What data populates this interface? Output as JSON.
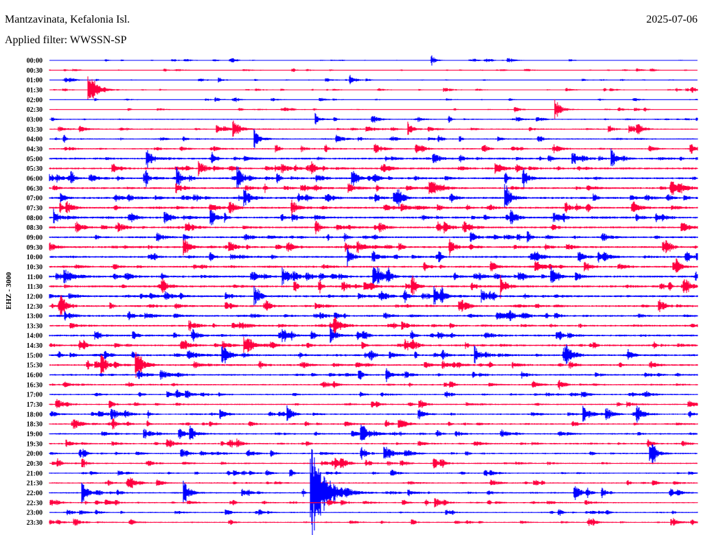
{
  "header": {
    "station": "Mantzavinata, Kefalonia Isl.",
    "date": "2025-07-06",
    "filter": "Applied filter: WWSSN-SP"
  },
  "chart_data": {
    "type": "helicorder",
    "title": "Mantzavinata, Kefalonia Isl.",
    "ylabel": "EHZ - 3000",
    "minutes_per_line": 30,
    "colors": {
      "even": "#0000ff",
      "odd": "#ff0040"
    },
    "row_labels": [
      "00:00",
      "00:30",
      "01:00",
      "01:30",
      "02:00",
      "02:30",
      "03:00",
      "03:30",
      "04:00",
      "04:30",
      "05:00",
      "05:30",
      "06:00",
      "06:30",
      "07:00",
      "07:30",
      "08:00",
      "08:30",
      "09:00",
      "09:30",
      "10:00",
      "10:30",
      "11:00",
      "11:30",
      "12:00",
      "12:30",
      "13:00",
      "13:30",
      "14:00",
      "14:30",
      "15:00",
      "15:30",
      "16:00",
      "16:30",
      "17:00",
      "17:30",
      "18:00",
      "18:30",
      "19:00",
      "19:30",
      "20:00",
      "20:30",
      "21:00",
      "21:30",
      "22:00",
      "22:30",
      "23:00",
      "23:30"
    ],
    "noise_level": [
      0.12,
      0.12,
      0.13,
      0.14,
      0.13,
      0.15,
      0.22,
      0.25,
      0.25,
      0.28,
      0.38,
      0.38,
      0.4,
      0.38,
      0.42,
      0.42,
      0.42,
      0.38,
      0.38,
      0.4,
      0.4,
      0.38,
      0.42,
      0.42,
      0.42,
      0.38,
      0.38,
      0.36,
      0.4,
      0.38,
      0.4,
      0.36,
      0.34,
      0.3,
      0.28,
      0.28,
      0.3,
      0.3,
      0.3,
      0.3,
      0.28,
      0.28,
      0.26,
      0.26,
      0.28,
      0.26,
      0.24,
      0.24
    ],
    "events": [
      {
        "row": 0,
        "minute": 17.7,
        "amp": 0.5
      },
      {
        "row": 2,
        "minute": 13.9,
        "amp": 0.6
      },
      {
        "row": 3,
        "minute": 1.8,
        "amp": 2.2
      },
      {
        "row": 5,
        "minute": 23.4,
        "amp": 1.2
      },
      {
        "row": 6,
        "minute": 12.3,
        "amp": 0.6
      },
      {
        "row": 7,
        "minute": 8.5,
        "amp": 1.2
      },
      {
        "row": 7,
        "minute": 16.6,
        "amp": 0.7
      },
      {
        "row": 8,
        "minute": 9.5,
        "amp": 0.9
      },
      {
        "row": 10,
        "minute": 4.5,
        "amp": 1.0
      },
      {
        "row": 10,
        "minute": 26.0,
        "amp": 1.0
      },
      {
        "row": 11,
        "minute": 6.9,
        "amp": 1.0
      },
      {
        "row": 12,
        "minute": 5.9,
        "amp": 1.0
      },
      {
        "row": 12,
        "minute": 8.7,
        "amp": 1.2
      },
      {
        "row": 12,
        "minute": 21.9,
        "amp": 1.0
      },
      {
        "row": 13,
        "minute": 17.6,
        "amp": 1.0
      },
      {
        "row": 14,
        "minute": 9.0,
        "amp": 1.1
      },
      {
        "row": 14,
        "minute": 21.1,
        "amp": 1.2
      },
      {
        "row": 15,
        "minute": 11.2,
        "amp": 1.0
      },
      {
        "row": 16,
        "minute": 0.2,
        "amp": 0.8
      },
      {
        "row": 19,
        "minute": 6.2,
        "amp": 1.0
      },
      {
        "row": 19,
        "minute": 8.3,
        "amp": 0.8
      },
      {
        "row": 19,
        "minute": 18.5,
        "amp": 0.9
      },
      {
        "row": 19,
        "minute": 28.4,
        "amp": 0.8
      },
      {
        "row": 20,
        "minute": 13.8,
        "amp": 0.9
      },
      {
        "row": 21,
        "minute": 22.5,
        "amp": 0.8
      },
      {
        "row": 22,
        "minute": 10.8,
        "amp": 1.0
      },
      {
        "row": 22,
        "minute": 15.0,
        "amp": 1.1
      },
      {
        "row": 22,
        "minute": 23.2,
        "amp": 1.1
      },
      {
        "row": 23,
        "minute": 20.9,
        "amp": 1.0
      },
      {
        "row": 24,
        "minute": 9.5,
        "amp": 0.9
      },
      {
        "row": 24,
        "minute": 17.8,
        "amp": 1.1
      },
      {
        "row": 24,
        "minute": 20.0,
        "amp": 0.8
      },
      {
        "row": 28,
        "minute": 13.0,
        "amp": 1.0
      },
      {
        "row": 29,
        "minute": 9.0,
        "amp": 0.9
      },
      {
        "row": 30,
        "minute": 8.0,
        "amp": 1.3
      },
      {
        "row": 30,
        "minute": 19.7,
        "amp": 0.9
      },
      {
        "row": 31,
        "minute": 2.4,
        "amp": 1.0
      },
      {
        "row": 31,
        "minute": 4.0,
        "amp": 1.2
      },
      {
        "row": 32,
        "minute": 15.6,
        "amp": 0.7
      },
      {
        "row": 36,
        "minute": 11.0,
        "amp": 0.9
      },
      {
        "row": 36,
        "minute": 24.7,
        "amp": 1.0
      },
      {
        "row": 38,
        "minute": 6.5,
        "amp": 0.9
      },
      {
        "row": 38,
        "minute": 14.4,
        "amp": 1.4
      },
      {
        "row": 40,
        "minute": 15.5,
        "amp": 1.0
      },
      {
        "row": 40,
        "minute": 27.8,
        "amp": 1.4
      },
      {
        "row": 44,
        "minute": 12.1,
        "amp": 5.0
      },
      {
        "row": 44,
        "minute": 1.5,
        "amp": 1.2
      },
      {
        "row": 44,
        "minute": 6.2,
        "amp": 1.3
      },
      {
        "row": 44,
        "minute": 24.3,
        "amp": 1.0
      }
    ]
  }
}
